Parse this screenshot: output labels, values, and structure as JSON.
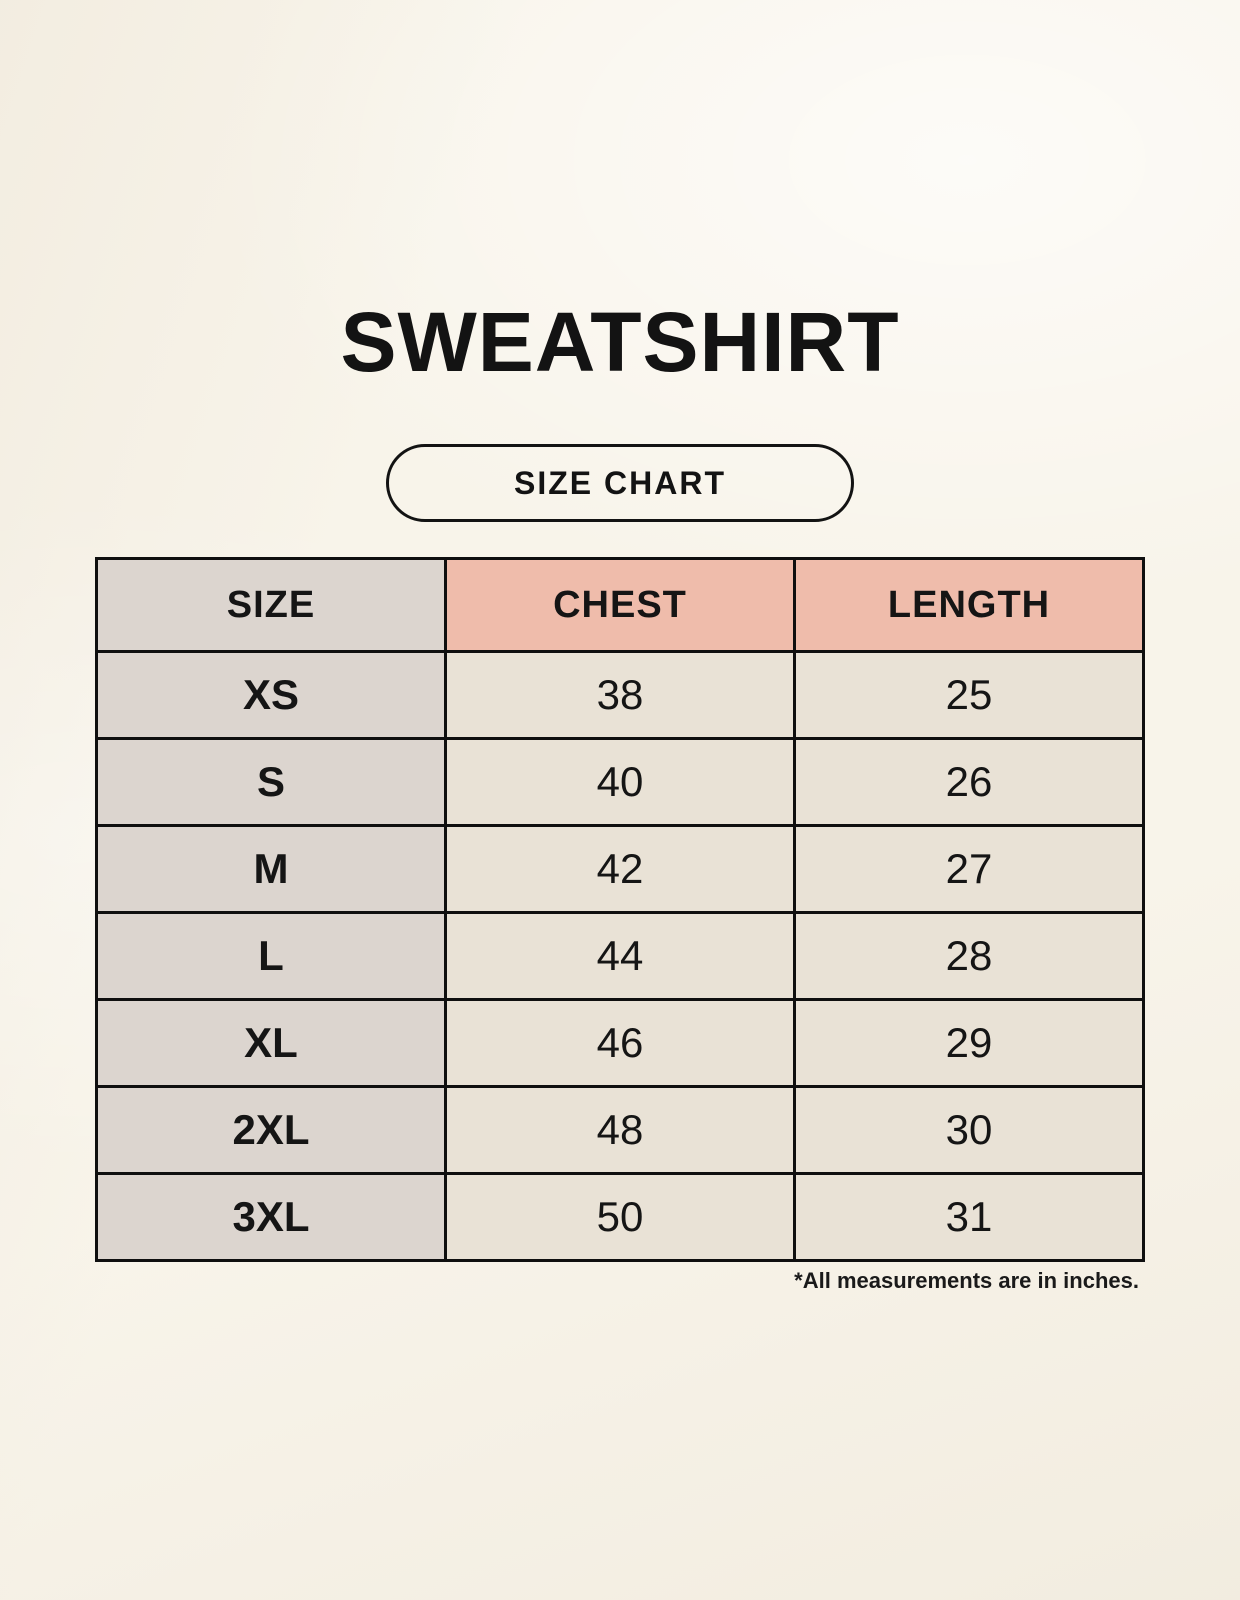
{
  "page": {
    "title": "SWEATSHIRT",
    "size_chart_label": "SIZE CHART",
    "footnote": "*All measurements are in inches."
  },
  "colors": {
    "background": "#f8f4ea",
    "header_accent_salmon": "#efbcab",
    "size_column_gray": "#dcd5cf",
    "value_cell_cream": "#e9e2d6",
    "table_border": "#0f0f0f",
    "text": "#151515"
  },
  "chart_data": {
    "type": "table",
    "title": "SWEATSHIRT",
    "subtitle": "SIZE CHART",
    "columns": [
      "SIZE",
      "CHEST",
      "LENGTH"
    ],
    "rows": [
      {
        "size": "XS",
        "chest": 38,
        "length": 25
      },
      {
        "size": "S",
        "chest": 40,
        "length": 26
      },
      {
        "size": "M",
        "chest": 42,
        "length": 27
      },
      {
        "size": "L",
        "chest": 44,
        "length": 28
      },
      {
        "size": "XL",
        "chest": 46,
        "length": 29
      },
      {
        "size": "2XL",
        "chest": 48,
        "length": 30
      },
      {
        "size": "3XL",
        "chest": 50,
        "length": 31
      }
    ],
    "note": "*All measurements are in inches.",
    "units": "inches"
  }
}
